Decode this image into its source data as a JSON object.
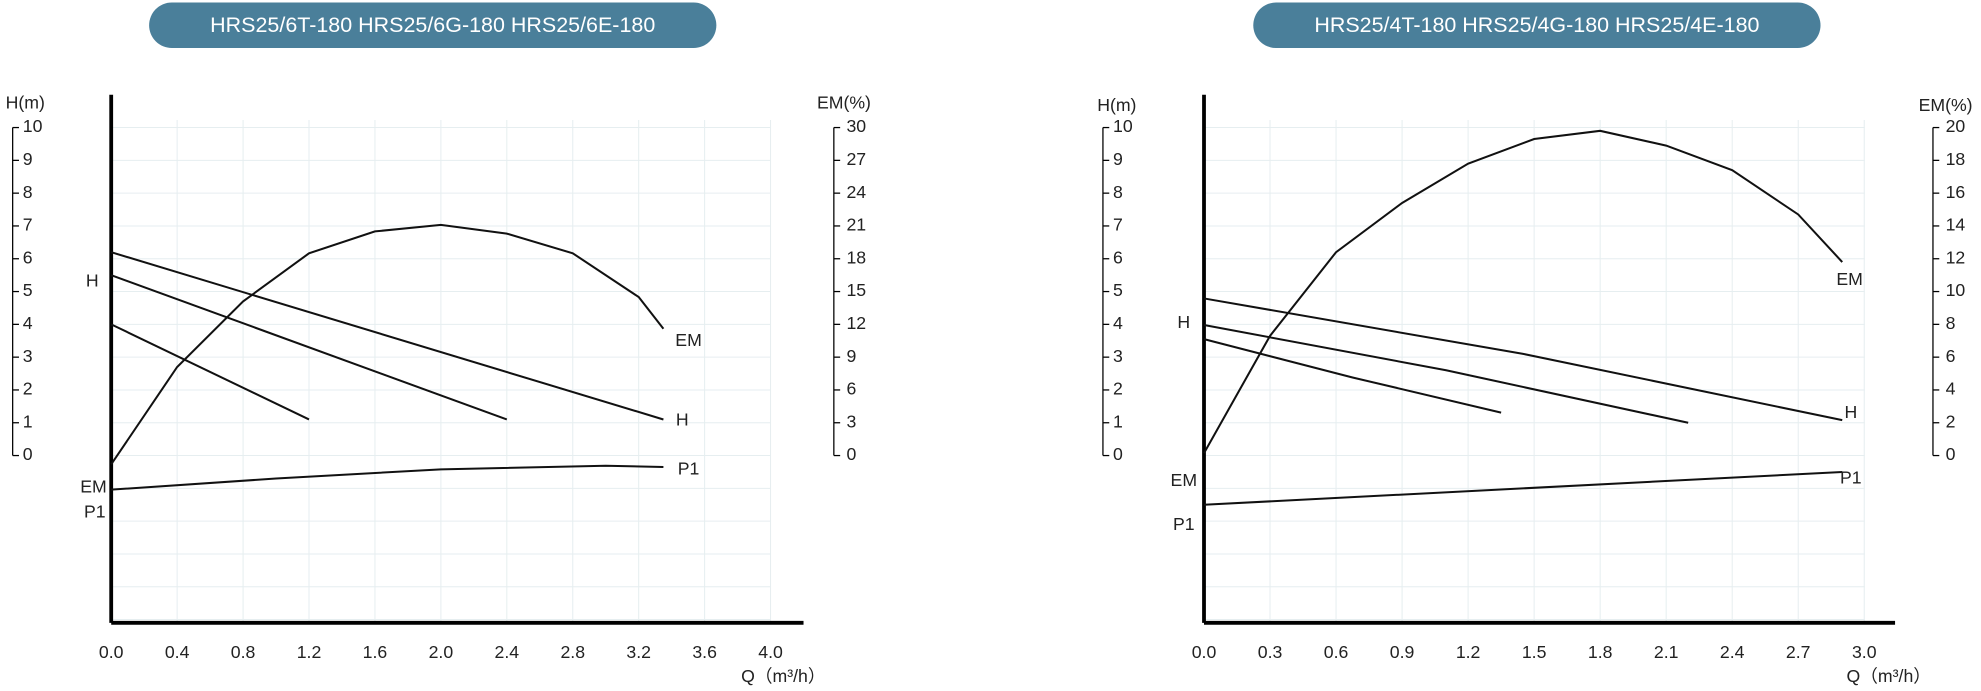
{
  "chart_data": [
    {
      "type": "line",
      "title": "HRS25/6T-180 HRS25/6G-180 HRS25/6E-180",
      "ylabel": "H(m)",
      "y2label": "EM(%)",
      "xlabel": "Q（m³/h）",
      "xlim": [
        0,
        4.2
      ],
      "ylim": [
        -5.1,
        11
      ],
      "y2lim": [
        -15.3,
        33
      ],
      "xticks": [
        {
          "value": 0,
          "label": "0.0"
        },
        0.4,
        0.8,
        1.2,
        1.6,
        {
          "value": 2,
          "label": "2.0"
        },
        2.4,
        2.8,
        3.2,
        3.6,
        {
          "value": 4,
          "label": "4.0"
        }
      ],
      "yticks": [
        0,
        1,
        2,
        3,
        4,
        5,
        6,
        7,
        8,
        9,
        10
      ],
      "y2ticks": [
        0,
        3,
        6,
        9,
        12,
        15,
        18,
        21,
        24,
        27,
        30
      ],
      "grid": true,
      "color": "#111111",
      "series": [
        {
          "x": [
            0,
            3.35
          ],
          "values": [
            6.2,
            1.1
          ]
        },
        {
          "x": [
            0,
            2.4
          ],
          "values": [
            5.5,
            1.1
          ]
        },
        {
          "x": [
            0,
            1.2
          ],
          "values": [
            4.0,
            1.1
          ]
        },
        {
          "x": [
            0,
            0.4,
            0.8,
            1.2,
            1.6,
            2.0,
            2.4,
            2.8,
            3.2,
            3.35
          ],
          "values": [
            -0.8,
            8.1,
            14.1,
            18.5,
            20.5,
            21.1,
            20.3,
            18.5,
            14.5,
            11.6
          ],
          "axis": "y2"
        },
        {
          "x": [
            0,
            1,
            2,
            3,
            3.35
          ],
          "values": [
            -1.04,
            -0.7,
            -0.42,
            -0.31,
            -0.35
          ]
        }
      ],
      "annotations": [
        "EM",
        "H",
        "P1",
        "H",
        "EM",
        "P1"
      ]
    },
    {
      "type": "line",
      "title": "HRS25/4T-180 HRS25/4G-180 HRS25/4E-180",
      "ylabel": "H(m)",
      "y2label": "EM(%)",
      "xlabel": "Q（m³/h）",
      "xlim": [
        0,
        3.14
      ],
      "ylim": [
        -5.1,
        11
      ],
      "y2lim": [
        -10.2,
        22
      ],
      "xticks": [
        {
          "value": 0,
          "label": "0.0"
        },
        0.3,
        0.6,
        0.9,
        1.2,
        1.5,
        1.8,
        2.1,
        2.4,
        2.7,
        {
          "value": 3,
          "label": "3.0"
        }
      ],
      "yticks": [
        0,
        1,
        2,
        3,
        4,
        5,
        6,
        7,
        8,
        9,
        10
      ],
      "y2ticks": [
        0,
        2,
        4,
        6,
        8,
        10,
        12,
        14,
        16,
        18,
        20
      ],
      "grid": true,
      "color": "#111111",
      "series": [
        {
          "x": [
            0,
            1.45,
            2.9
          ],
          "values": [
            4.79,
            3.1,
            1.08
          ]
        },
        {
          "x": [
            0,
            1.1,
            2.2
          ],
          "values": [
            3.98,
            2.6,
            1.0
          ]
        },
        {
          "x": [
            0,
            0.675,
            1.35
          ],
          "values": [
            3.55,
            2.38,
            1.31
          ]
        },
        {
          "x": [
            0,
            0.3,
            0.6,
            0.9,
            1.2,
            1.5,
            1.8,
            2.1,
            2.4,
            2.7,
            2.9
          ],
          "values": [
            0.15,
            7.3,
            12.4,
            15.4,
            17.8,
            19.3,
            19.8,
            18.9,
            17.4,
            14.7,
            11.8
          ],
          "axis": "y2"
        },
        {
          "x": [
            0,
            2.9
          ],
          "values": [
            -1.5,
            -0.5
          ]
        }
      ],
      "annotations": [
        "EM",
        "H",
        "P1",
        "H",
        "EM",
        "P1"
      ]
    }
  ]
}
